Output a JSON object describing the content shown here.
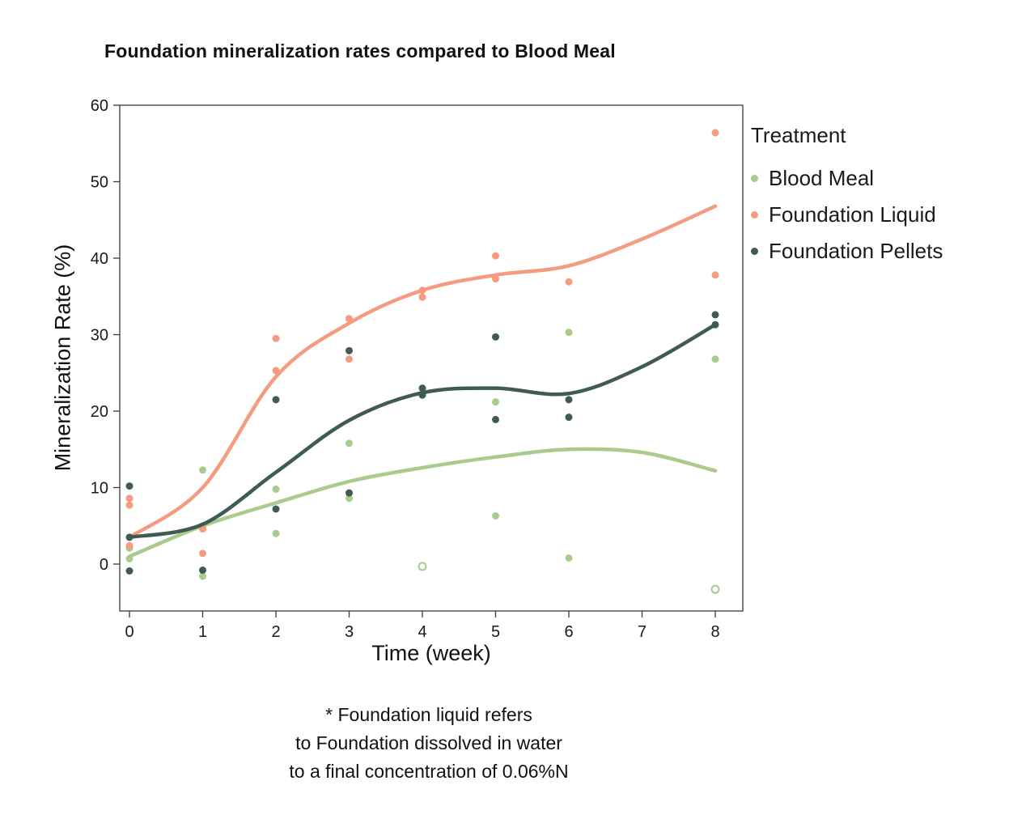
{
  "chart_data": {
    "type": "scatter",
    "title": "Foundation mineralization rates compared to Blood Meal",
    "xlabel": "Time (week)",
    "ylabel": "Mineralization Rate (%)",
    "xlim": [
      0,
      8
    ],
    "ylim": [
      -6,
      60
    ],
    "xticks": [
      0,
      1,
      2,
      3,
      4,
      5,
      6,
      7,
      8
    ],
    "yticks": [
      0,
      10,
      20,
      30,
      40,
      50,
      60
    ],
    "grid": false,
    "legend_title": "Treatment",
    "legend_position": "right",
    "series": [
      {
        "name": "Blood Meal",
        "color": "#a9cb8c",
        "points": [
          [
            0,
            2.1
          ],
          [
            0,
            0.7
          ],
          [
            1,
            12.3
          ],
          [
            1,
            5.0
          ],
          [
            1,
            -1.6
          ],
          [
            2,
            9.8
          ],
          [
            2,
            4.0
          ],
          [
            3,
            15.8
          ],
          [
            3,
            8.6
          ],
          [
            4,
            -0.3,
            "open"
          ],
          [
            5,
            21.2
          ],
          [
            5,
            6.3
          ],
          [
            6,
            30.3
          ],
          [
            6,
            0.8
          ],
          [
            8,
            26.8
          ],
          [
            8,
            -3.3,
            "open"
          ]
        ],
        "trend": [
          [
            0,
            1.0
          ],
          [
            1,
            5.0
          ],
          [
            2,
            8.0
          ],
          [
            3,
            10.8
          ],
          [
            4,
            12.6
          ],
          [
            5,
            14.0
          ],
          [
            6,
            15.0
          ],
          [
            7,
            14.6
          ],
          [
            8,
            12.2
          ]
        ]
      },
      {
        "name": "Foundation Liquid",
        "color": "#f59b80",
        "points": [
          [
            0,
            8.6
          ],
          [
            0,
            7.7
          ],
          [
            0,
            2.4
          ],
          [
            1,
            4.6
          ],
          [
            1,
            1.4
          ],
          [
            2,
            29.5
          ],
          [
            2,
            25.3
          ],
          [
            3,
            32.1
          ],
          [
            3,
            26.8
          ],
          [
            4,
            35.8
          ],
          [
            4,
            34.9
          ],
          [
            5,
            40.3
          ],
          [
            5,
            37.3
          ],
          [
            6,
            36.9
          ],
          [
            8,
            56.4
          ],
          [
            8,
            37.8
          ]
        ],
        "trend": [
          [
            0,
            3.5
          ],
          [
            1,
            10.0
          ],
          [
            2,
            24.5
          ],
          [
            3,
            31.5
          ],
          [
            4,
            35.8
          ],
          [
            5,
            37.8
          ],
          [
            6,
            39.0
          ],
          [
            7,
            42.5
          ],
          [
            8,
            46.8
          ]
        ]
      },
      {
        "name": "Foundation Pellets",
        "color": "#3f5b53",
        "points": [
          [
            0,
            10.2
          ],
          [
            0,
            3.5
          ],
          [
            0,
            -0.9
          ],
          [
            1,
            -0.8
          ],
          [
            2,
            21.5
          ],
          [
            2,
            7.2
          ],
          [
            3,
            27.9
          ],
          [
            3,
            9.3
          ],
          [
            4,
            23.0
          ],
          [
            4,
            22.1
          ],
          [
            5,
            29.7
          ],
          [
            5,
            18.9
          ],
          [
            6,
            21.5
          ],
          [
            6,
            19.2
          ],
          [
            8,
            32.6
          ],
          [
            8,
            31.3
          ]
        ],
        "trend": [
          [
            0,
            3.5
          ],
          [
            1,
            5.2
          ],
          [
            2,
            12.0
          ],
          [
            3,
            18.8
          ],
          [
            4,
            22.4
          ],
          [
            5,
            23.0
          ],
          [
            6,
            22.3
          ],
          [
            7,
            25.8
          ],
          [
            8,
            31.3
          ]
        ]
      }
    ]
  },
  "footnote": {
    "lines": [
      "* Foundation liquid refers",
      "to Foundation dissolved in water",
      "to a final concentration of 0.06%N"
    ]
  }
}
